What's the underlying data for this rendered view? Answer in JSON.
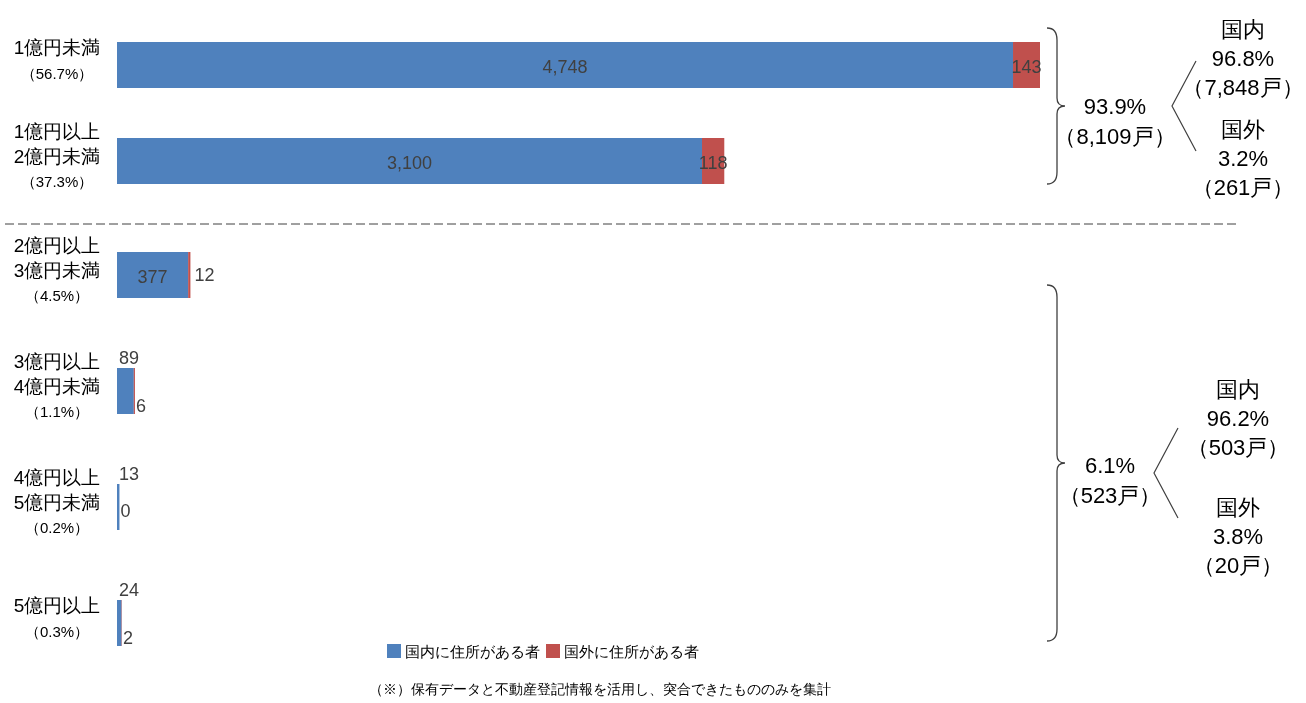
{
  "chart_data": {
    "type": "bar",
    "orientation": "horizontal",
    "stacked": true,
    "legend": "bottom",
    "categories": [
      "1億円未満（56.7%）",
      "1億円以上2億円未満（37.3%）",
      "2億円以上3億円未満（4.5%）",
      "3億円以上4億円未満（1.1%）",
      "4億円以上5億円未満（0.2%）",
      "5億円以上（0.3%）"
    ],
    "series": [
      {
        "name": "国内に住所がある者",
        "color": "#4f81bd",
        "values": [
          4748,
          3100,
          377,
          89,
          13,
          24
        ],
        "value_labels": [
          "4,748",
          "3,100",
          "377",
          "89",
          "13",
          "24"
        ]
      },
      {
        "name": "国外に住所がある者",
        "color": "#c0504d",
        "values": [
          143,
          118,
          12,
          6,
          0,
          2
        ],
        "value_labels": [
          "143",
          "118",
          "12",
          "6",
          "0",
          "2"
        ]
      }
    ],
    "annotations": [
      "93.9%\n（8,109戸）",
      "国内\n96.8%\n（7,848戸）",
      "国外\n3.2%\n（261戸）",
      "6.1%\n（523戸）",
      "国内\n96.2%\n（503戸）",
      "国外\n3.8%\n（20戸）",
      "（※）保有データと不動産登記情報を活用し、突合できたもののみを集計"
    ]
  }
}
